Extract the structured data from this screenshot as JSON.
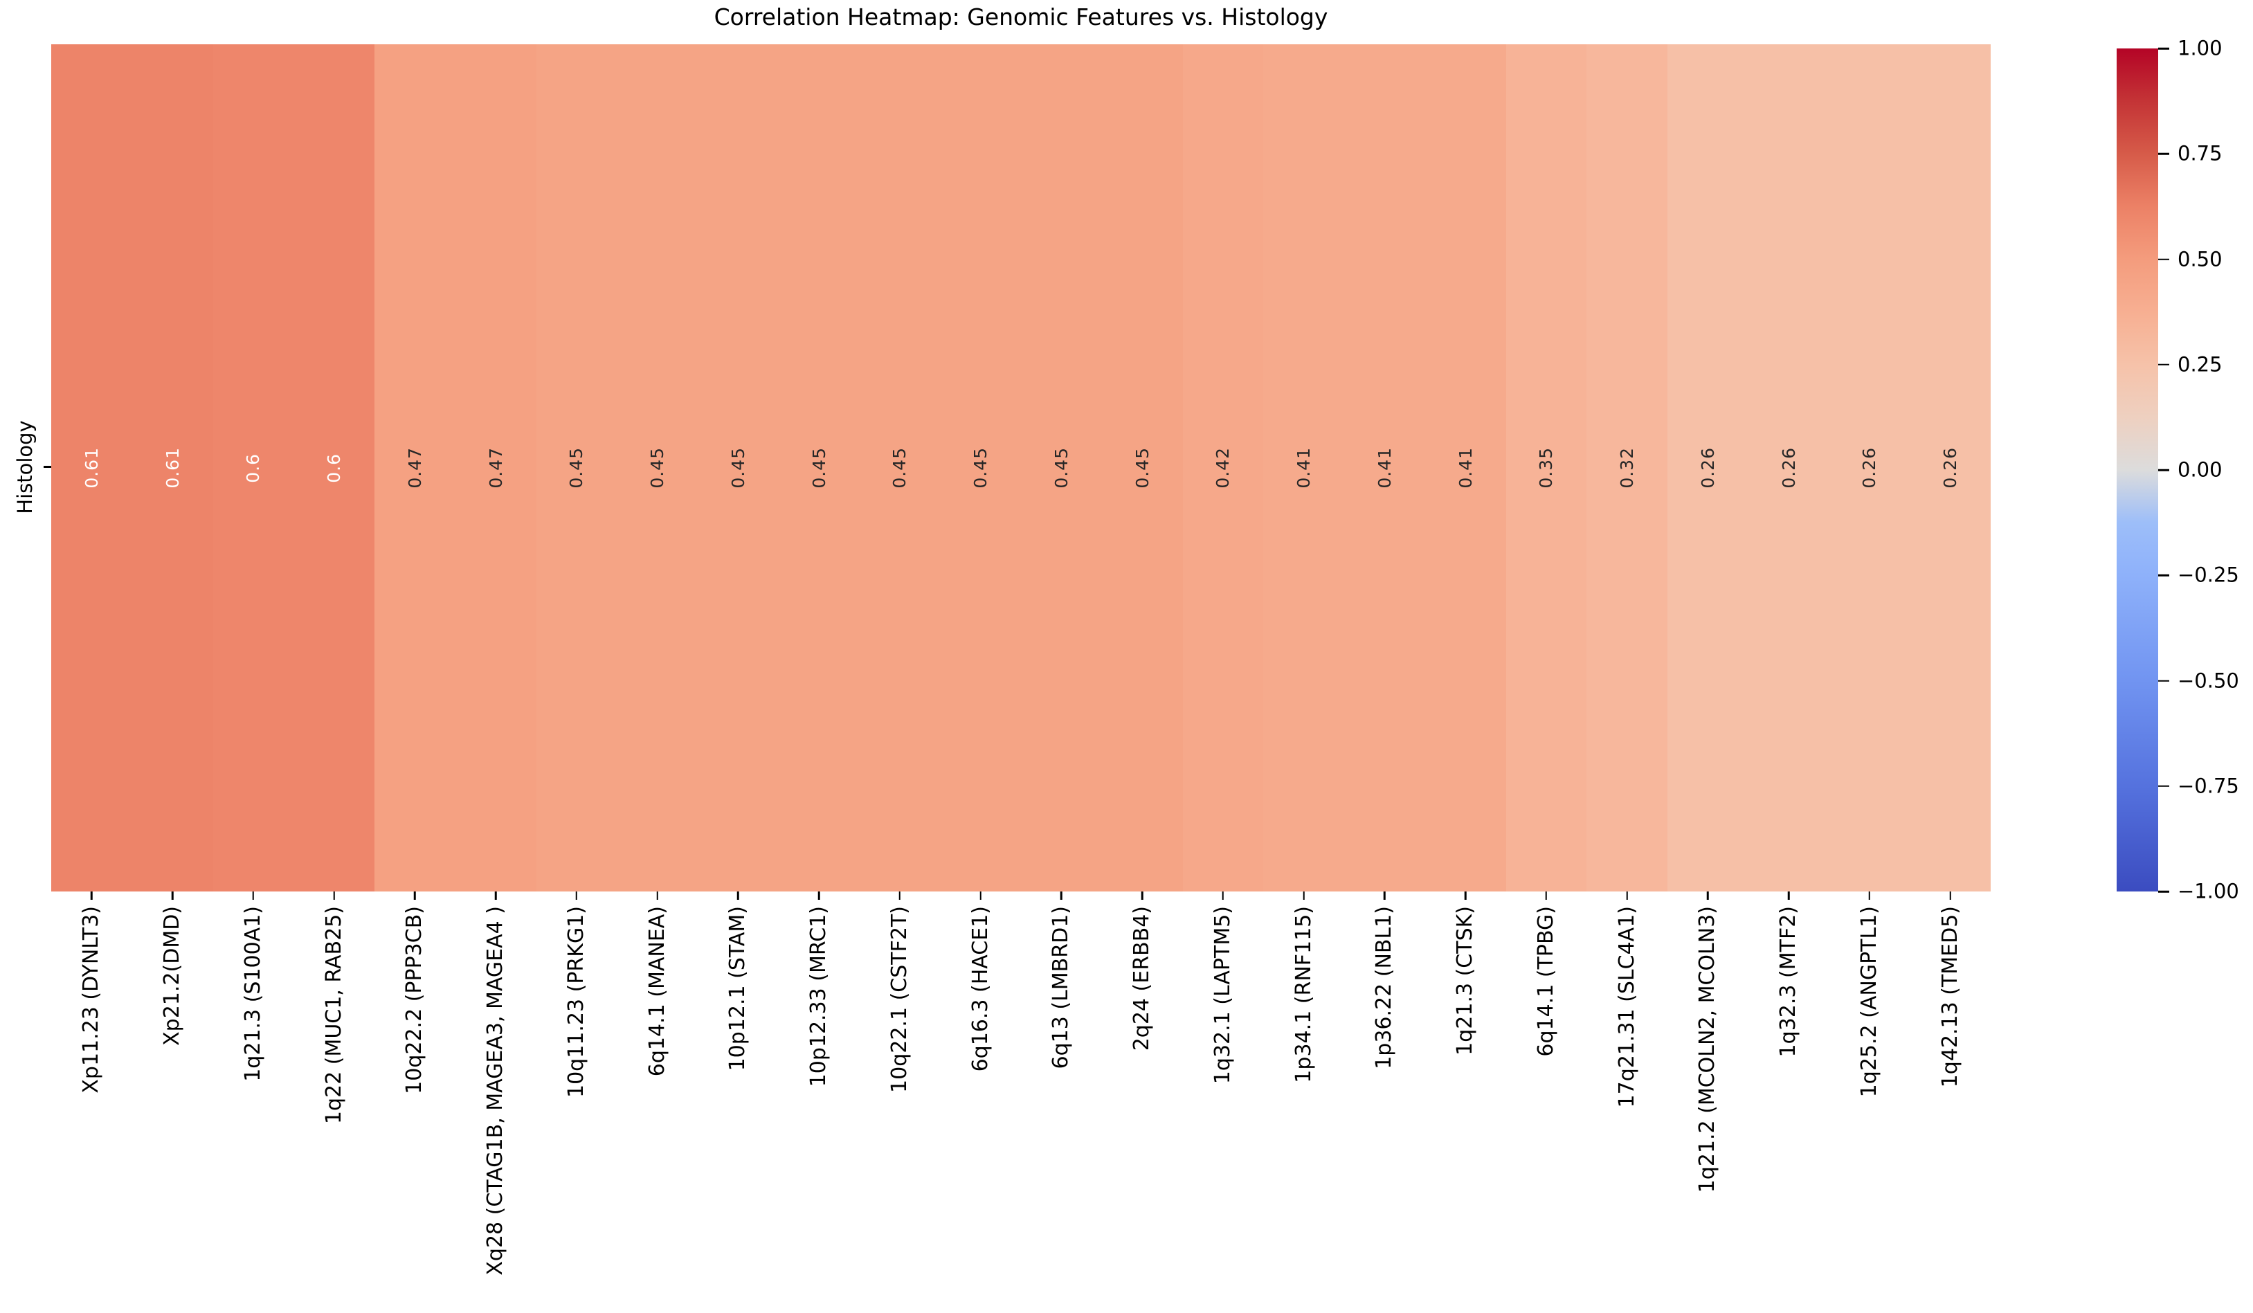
{
  "title": "Correlation Heatmap: Genomic Features vs. Histology",
  "y_axis_label": "Histology",
  "chart_data": {
    "type": "heatmap",
    "title": "Correlation Heatmap: Genomic Features vs. Histology",
    "row_labels": [
      "Histology"
    ],
    "columns": [
      "Xp11.23 (DYNLT3)",
      "Xp21.2(DMD)",
      "1q21.3 (S100A1)",
      "1q22 (MUC1, RAB25)",
      "10q22.2 (PPP3CB)",
      "Xq28 (CTAG1B, MAGEA3, MAGEA4 )",
      "10q11.23 (PRKG1)",
      "6q14.1 (MANEA)",
      "10p12.1 (STAM)",
      "10p12.33 (MRC1)",
      "10q22.1 (CSTF2T)",
      "6q16.3 (HACE1)",
      "6q13 (LMBRD1)",
      "2q24 (ERBB4)",
      "1q32.1 (LAPTM5)",
      "1p34.1 (RNF115)",
      "1p36.22 (NBL1)",
      "1q21.3 (CTSK)",
      "6q14.1 (TPBG)",
      "17q21.31 (SLC4A1)",
      "1q21.2 (MCOLN2, MCOLN3)",
      "1q32.3 (MTF2)",
      "1q25.2 (ANGPTL1)",
      "1q42.13 (TMED5)"
    ],
    "series": [
      {
        "name": "Histology",
        "values": [
          0.61,
          0.61,
          0.6,
          0.6,
          0.47,
          0.47,
          0.45,
          0.45,
          0.45,
          0.45,
          0.45,
          0.45,
          0.45,
          0.45,
          0.42,
          0.41,
          0.41,
          0.41,
          0.35,
          0.32,
          0.26,
          0.26,
          0.26,
          0.26
        ]
      }
    ],
    "value_labels": [
      "0.61",
      "0.61",
      "0.6",
      "0.6",
      "0.47",
      "0.47",
      "0.45",
      "0.45",
      "0.45",
      "0.45",
      "0.45",
      "0.45",
      "0.45",
      "0.45",
      "0.42",
      "0.41",
      "0.41",
      "0.41",
      "0.35",
      "0.32",
      "0.26",
      "0.26",
      "0.26",
      "0.26"
    ],
    "vmin": -1,
    "vmax": 1,
    "colormap": "coolwarm",
    "grid": false,
    "legend_position": "right-colorbar",
    "colorbar_ticks": [
      "1.00",
      "0.75",
      "0.50",
      "0.25",
      "0.00",
      "−0.25",
      "−0.50",
      "−0.75",
      "−1.00"
    ]
  },
  "colors": {
    "background": "#ffffff",
    "text": "#000000",
    "tick": "#000000",
    "annotation_dark": "#262626",
    "annotation_light": "#ffffff",
    "annotation_white_min_value": 0.6,
    "colormap_anchors": [
      [
        0.0,
        "#3B4CC0"
      ],
      [
        0.125,
        "#5572DE"
      ],
      [
        0.25,
        "#7194F1"
      ],
      [
        0.375,
        "#8EB1FA"
      ],
      [
        0.4375,
        "#9DBEF9"
      ],
      [
        0.5,
        "#DCDCDC"
      ],
      [
        0.5625,
        "#EED0C0"
      ],
      [
        0.625,
        "#F6C2A9"
      ],
      [
        0.6875,
        "#F7AF92"
      ],
      [
        0.75,
        "#F49C7D"
      ],
      [
        0.8125,
        "#EC8166"
      ],
      [
        0.875,
        "#D65B49"
      ],
      [
        0.9375,
        "#C43436"
      ],
      [
        1.0,
        "#B40426"
      ]
    ]
  }
}
